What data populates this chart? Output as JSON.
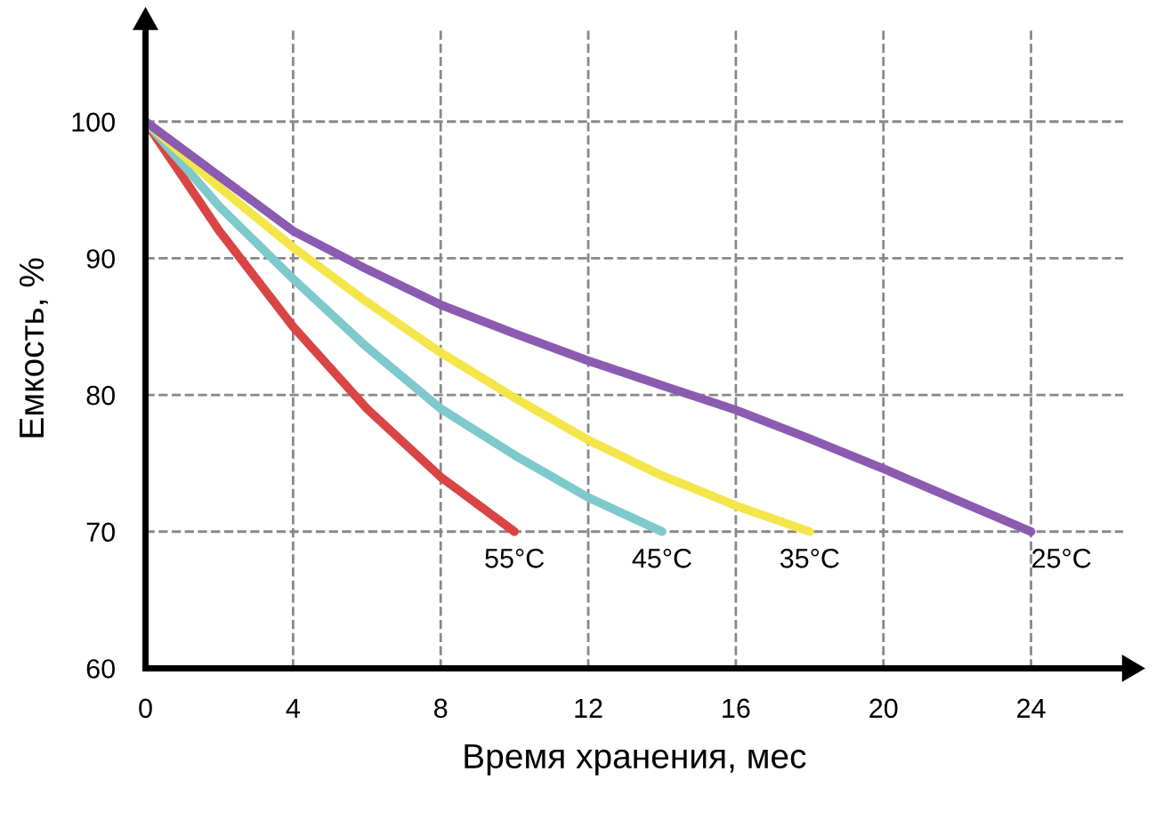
{
  "chart_data": {
    "type": "line",
    "xlabel": "Время хранения, мес",
    "ylabel": "Емкость, %",
    "xlim": [
      0,
      26.5
    ],
    "ylim": [
      60,
      106.8
    ],
    "xticks": [
      0,
      4,
      8,
      12,
      16,
      20,
      24
    ],
    "yticks": [
      60,
      70,
      80,
      90,
      100
    ],
    "grid": true,
    "legend": false,
    "marker": "none",
    "series": [
      {
        "name": "55°C",
        "color": "#d94545",
        "x": [
          0,
          2,
          4,
          6,
          8,
          10
        ],
        "values": [
          100,
          92,
          85,
          79,
          74,
          70
        ]
      },
      {
        "name": "45°C",
        "color": "#7ec9cc",
        "x": [
          0,
          2,
          4,
          6,
          8,
          10,
          12,
          14
        ],
        "values": [
          100,
          93.8,
          88.5,
          83.5,
          79,
          75.6,
          72.5,
          70
        ]
      },
      {
        "name": "35°C",
        "color": "#f4e64a",
        "x": [
          0,
          2,
          4,
          6,
          8,
          10,
          12,
          14,
          16,
          18
        ],
        "values": [
          100,
          95.2,
          90.8,
          86.8,
          83.1,
          79.8,
          76.7,
          74.1,
          71.9,
          70
        ]
      },
      {
        "name": "25°C",
        "color": "#8a5bb0",
        "x": [
          0,
          2,
          4,
          6,
          8,
          10,
          12,
          14,
          16,
          18,
          20,
          22,
          24
        ],
        "values": [
          100,
          96,
          92,
          89.2,
          86.6,
          84.5,
          82.5,
          80.7,
          78.9,
          76.8,
          74.6,
          72.3,
          70
        ]
      }
    ]
  }
}
